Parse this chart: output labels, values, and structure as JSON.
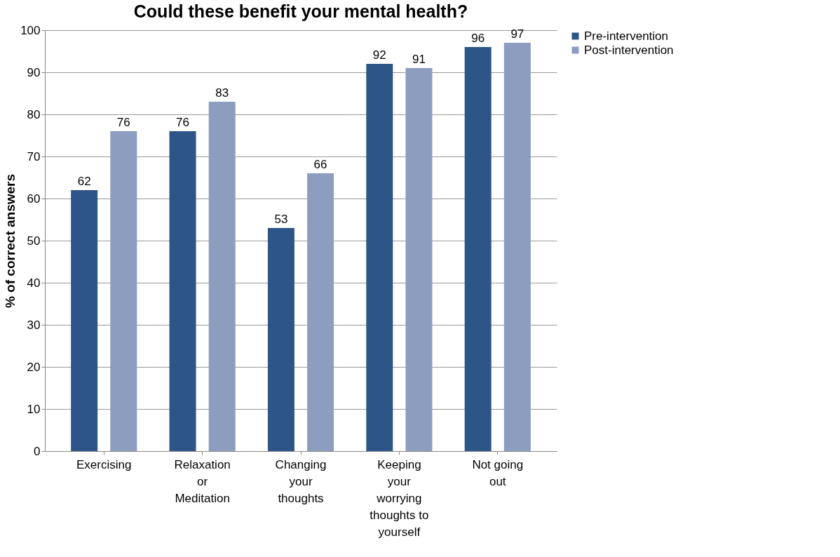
{
  "chart_data": {
    "type": "bar",
    "title": "Could these benefit your mental health?",
    "ylabel": "% of correct answers",
    "categories": [
      "Exercising",
      "Relaxation or Meditation",
      "Changing your thoughts",
      "Keeping your worrying thoughts to yourself",
      "Not going out"
    ],
    "series": [
      {
        "name": "Pre-intervention",
        "color": "#2e5587",
        "values": [
          62,
          76,
          53,
          92,
          96
        ]
      },
      {
        "name": "Post-intervention",
        "color": "#8c9dbf",
        "values": [
          76,
          83,
          66,
          91,
          97
        ]
      }
    ],
    "ylim": [
      0,
      100
    ],
    "yticks": [
      0,
      10,
      20,
      30,
      40,
      50,
      60,
      70,
      80,
      90,
      100
    ],
    "grid": "y",
    "legend": "right",
    "data_labels": true
  }
}
